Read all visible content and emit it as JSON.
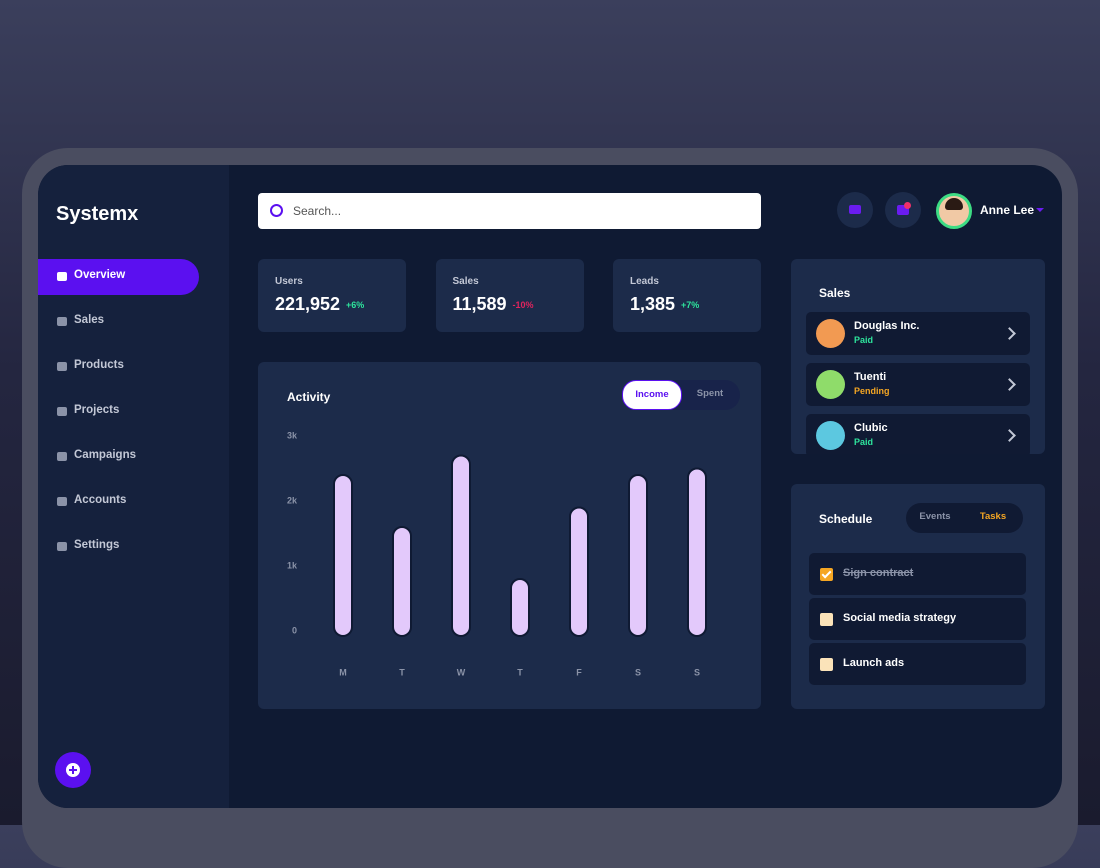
{
  "brand": "Systemx",
  "search_placeholder": "Search...",
  "user": {
    "name": "Anne Lee"
  },
  "nav": [
    "Overview",
    "Sales",
    "Products",
    "Projects",
    "Campaigns",
    "Accounts",
    "Settings"
  ],
  "stats": [
    {
      "label": "Users",
      "value": "221,952",
      "change": "+6%"
    },
    {
      "label": "Sales",
      "value": "11,589",
      "change": "-10%"
    },
    {
      "label": "Leads",
      "value": "1,385",
      "change": "+7%"
    }
  ],
  "activity": {
    "title": "Activity",
    "tabs": [
      "Income",
      "Spent"
    ],
    "categories": [
      "M",
      "T",
      "W",
      "T",
      "F",
      "S",
      "S"
    ],
    "values": [
      2400,
      1600,
      2700,
      800,
      1900,
      2400,
      2500
    ],
    "ylim": [
      0,
      3000
    ],
    "yticks": [
      0,
      {
        "value": 1000,
        "label": "1k"
      },
      {
        "value": 2000,
        "label": "2k"
      },
      {
        "value": 3000,
        "label": "3k"
      }
    ]
  },
  "sales": {
    "title": "Sales",
    "items": [
      {
        "name": "Douglas Inc.",
        "status": "Paid"
      },
      {
        "name": "Tuenti",
        "status": "Pending"
      },
      {
        "name": "Clubic",
        "status": "Paid"
      }
    ]
  },
  "schedule": {
    "title": "Schedule",
    "tabs": [
      "Events",
      "Tasks"
    ],
    "tasks": [
      {
        "text": "Sign contract",
        "done": true
      },
      {
        "text": "Social media strategy",
        "done": false
      },
      {
        "text": "Launch ads",
        "done": false
      }
    ]
  }
}
